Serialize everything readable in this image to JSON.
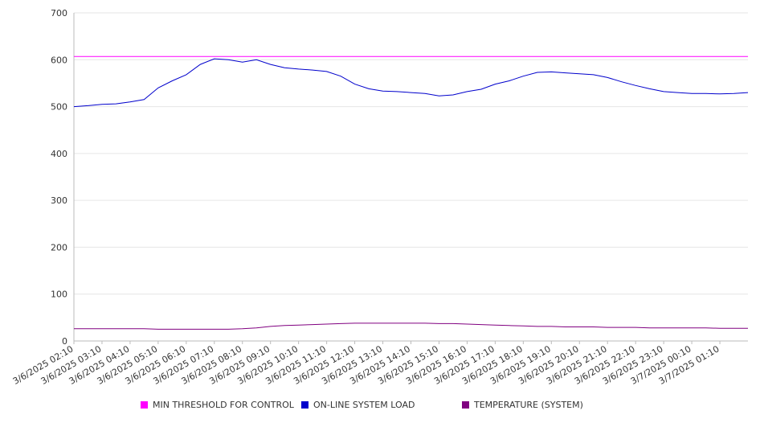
{
  "chart_data": {
    "type": "line",
    "title": "",
    "xlabel": "",
    "ylabel": "",
    "ylim": [
      0,
      700
    ],
    "yticks": [
      0,
      100,
      200,
      300,
      400,
      500,
      600,
      700
    ],
    "grid": true,
    "legend_position": "bottom",
    "x_start": "3/6/2025 02:10",
    "x_end": "3/7/2025 02:10",
    "xtick_labels": [
      "3/6/2025 02:10",
      "3/6/2025 03:10",
      "3/6/2025 04:10",
      "3/6/2025 05:10",
      "3/6/2025 06:10",
      "3/6/2025 07:10",
      "3/6/2025 08:10",
      "3/6/2025 09:10",
      "3/6/2025 10:10",
      "3/6/2025 11:10",
      "3/6/2025 12:10",
      "3/6/2025 13:10",
      "3/6/2025 14:10",
      "3/6/2025 15:10",
      "3/6/2025 16:10",
      "3/6/2025 17:10",
      "3/6/2025 18:10",
      "3/6/2025 19:10",
      "3/6/2025 20:10",
      "3/6/2025 21:10",
      "3/6/2025 22:10",
      "3/6/2025 23:10",
      "3/7/2025 00:10",
      "3/7/2025 01:10"
    ],
    "x": [
      "3/6/2025 02:10",
      "3/6/2025 02:40",
      "3/6/2025 03:10",
      "3/6/2025 03:40",
      "3/6/2025 04:10",
      "3/6/2025 04:40",
      "3/6/2025 05:10",
      "3/6/2025 05:40",
      "3/6/2025 06:10",
      "3/6/2025 06:40",
      "3/6/2025 07:10",
      "3/6/2025 07:40",
      "3/6/2025 08:10",
      "3/6/2025 08:40",
      "3/6/2025 09:10",
      "3/6/2025 09:40",
      "3/6/2025 10:10",
      "3/6/2025 10:40",
      "3/6/2025 11:10",
      "3/6/2025 11:40",
      "3/6/2025 12:10",
      "3/6/2025 12:40",
      "3/6/2025 13:10",
      "3/6/2025 13:40",
      "3/6/2025 14:10",
      "3/6/2025 14:40",
      "3/6/2025 15:10",
      "3/6/2025 15:40",
      "3/6/2025 16:10",
      "3/6/2025 16:40",
      "3/6/2025 17:10",
      "3/6/2025 17:40",
      "3/6/2025 18:10",
      "3/6/2025 18:40",
      "3/6/2025 19:10",
      "3/6/2025 19:40",
      "3/6/2025 20:10",
      "3/6/2025 20:40",
      "3/6/2025 21:10",
      "3/6/2025 21:40",
      "3/6/2025 22:10",
      "3/6/2025 22:40",
      "3/6/2025 23:10",
      "3/6/2025 23:40",
      "3/7/2025 00:10",
      "3/7/2025 00:40",
      "3/7/2025 01:10",
      "3/7/2025 01:40",
      "3/7/2025 02:10"
    ],
    "series": [
      {
        "name": "MIN THRESHOLD FOR CONTROL",
        "color": "#ff00ff",
        "values": [
          607,
          607,
          607,
          607,
          607,
          607,
          607,
          607,
          607,
          607,
          607,
          607,
          607,
          607,
          607,
          607,
          607,
          607,
          607,
          607,
          607,
          607,
          607,
          607,
          607,
          607,
          607,
          607,
          607,
          607,
          607,
          607,
          607,
          607,
          607,
          607,
          607,
          607,
          607,
          607,
          607,
          607,
          607,
          607,
          607,
          607,
          607,
          607,
          607
        ]
      },
      {
        "name": "ON-LINE SYSTEM LOAD",
        "color": "#0000cc",
        "values": [
          500,
          502,
          505,
          506,
          510,
          515,
          540,
          555,
          568,
          590,
          602,
          600,
          595,
          600,
          590,
          583,
          580,
          578,
          575,
          565,
          548,
          538,
          533,
          532,
          530,
          528,
          523,
          525,
          532,
          537,
          548,
          555,
          565,
          573,
          574,
          572,
          570,
          568,
          562,
          553,
          545,
          538,
          532,
          530,
          528,
          528,
          527,
          528,
          530
        ]
      },
      {
        "name": "TEMPERATURE (SYSTEM)",
        "color": "#800080",
        "values": [
          26,
          26,
          26,
          26,
          26,
          26,
          25,
          25,
          25,
          25,
          25,
          25,
          26,
          28,
          31,
          33,
          34,
          35,
          36,
          37,
          38,
          38,
          38,
          38,
          38,
          38,
          37,
          37,
          36,
          35,
          34,
          33,
          32,
          31,
          31,
          30,
          30,
          30,
          29,
          29,
          29,
          28,
          28,
          28,
          28,
          28,
          27,
          27,
          27
        ]
      }
    ]
  }
}
